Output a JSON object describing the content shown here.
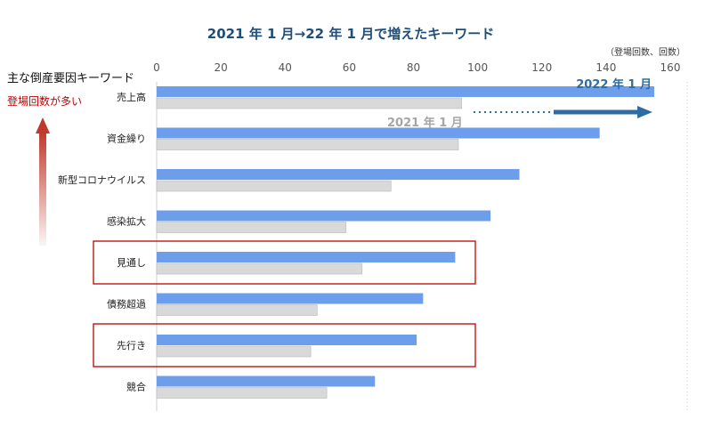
{
  "chart_data": {
    "type": "bar",
    "orientation": "horizontal",
    "title": "2021 年 1 月→22 年 1 月で増えたキーワード",
    "unit_label": "（登場回数、回数）",
    "axis_heading": "主な倒産要因キーワード",
    "side_note": "登場回数が多い",
    "categories": [
      "売上高",
      "資金繰り",
      "新型コロナウイルス",
      "感染拡大",
      "見通し",
      "債務超過",
      "先行き",
      "競合"
    ],
    "xlim": [
      0,
      160
    ],
    "xticks": [
      0,
      20,
      40,
      60,
      80,
      100,
      120,
      140,
      160
    ],
    "series": [
      {
        "name": "2022 年 1 月",
        "color": "#6d9eeb",
        "values": [
          155,
          138,
          113,
          104,
          93,
          83,
          81,
          68
        ]
      },
      {
        "name": "2021 年 1 月",
        "color": "#d9d9d9",
        "values": [
          95,
          94,
          73,
          59,
          64,
          50,
          48,
          53
        ]
      }
    ],
    "highlighted_categories": [
      "見通し",
      "先行き"
    ],
    "highlight_color": "#c00000",
    "arrow_color": "#2e6da4",
    "side_arrow_color": "#c0392b",
    "grid": false
  }
}
